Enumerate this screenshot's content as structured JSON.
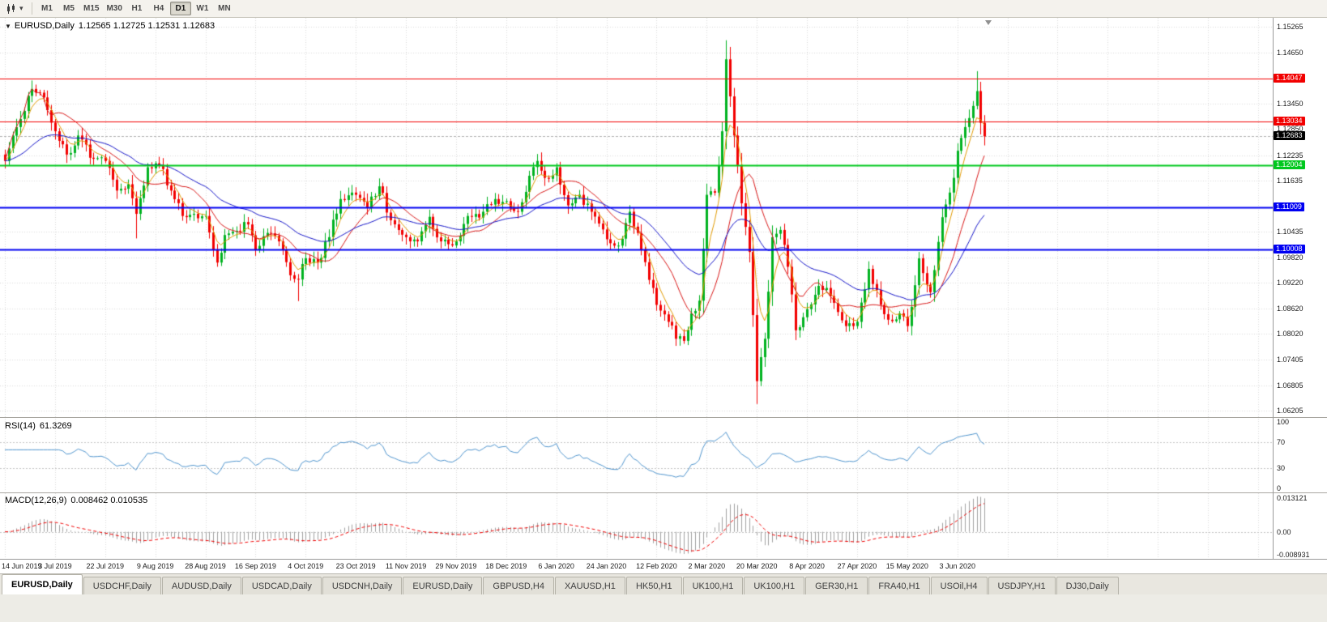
{
  "icons": {
    "chart_dropdown": "▼",
    "toolbar_caret": "▾"
  },
  "toolbar": {
    "timeframes": [
      {
        "label": "M1",
        "active": false
      },
      {
        "label": "M5",
        "active": false
      },
      {
        "label": "M15",
        "active": false
      },
      {
        "label": "M30",
        "active": false
      },
      {
        "label": "H1",
        "active": false
      },
      {
        "label": "H4",
        "active": false
      },
      {
        "label": "D1",
        "active": true
      },
      {
        "label": "W1",
        "active": false
      },
      {
        "label": "MN",
        "active": false
      }
    ]
  },
  "main_panel": {
    "symbol": "EURUSD,Daily",
    "ohlc": "1.12565 1.12725 1.12531 1.12683",
    "axis_ticks": [
      "1.15265",
      "1.14650",
      "1.13450",
      "1.12850",
      "1.12235",
      "1.11635",
      "1.10435",
      "1.09820",
      "1.09220",
      "1.08620",
      "1.08020",
      "1.07405",
      "1.06805",
      "1.06205"
    ],
    "price_lines": [
      {
        "label": "1.14047",
        "color": "#f20000",
        "width": 1
      },
      {
        "label": "1.13034",
        "color": "#f20000",
        "width": 1
      },
      {
        "label": "1.12004",
        "color": "#00c81e",
        "width": 2
      },
      {
        "label": "1.11009",
        "color": "#0000f2",
        "width": 2
      },
      {
        "label": "1.10008",
        "color": "#0000f2",
        "width": 2
      }
    ],
    "current_price": {
      "label": "1.12683",
      "color": "#000000"
    }
  },
  "rsi_panel": {
    "label": "RSI(14)",
    "value": "61.3269",
    "axis_ticks": [
      "100",
      "70",
      "30",
      "0"
    ],
    "levels": [
      70,
      30
    ]
  },
  "macd_panel": {
    "label": "MACD(12,26,9)",
    "value": "0.008462 0.010535",
    "axis_ticks": [
      "0.013121",
      "0.00",
      "-0.008931"
    ]
  },
  "tabs": [
    {
      "label": "EURUSD,Daily",
      "active": true
    },
    {
      "label": "USDCHF,Daily",
      "active": false
    },
    {
      "label": "AUDUSD,Daily",
      "active": false
    },
    {
      "label": "USDCAD,Daily",
      "active": false
    },
    {
      "label": "USDCNH,Daily",
      "active": false
    },
    {
      "label": "EURUSD,Daily",
      "active": false
    },
    {
      "label": "GBPUSD,H4",
      "active": false
    },
    {
      "label": "XAUUSD,H1",
      "active": false
    },
    {
      "label": "HK50,H1",
      "active": false
    },
    {
      "label": "UK100,H1",
      "active": false
    },
    {
      "label": "UK100,H1",
      "active": false
    },
    {
      "label": "GER30,H1",
      "active": false
    },
    {
      "label": "FRA40,H1",
      "active": false
    },
    {
      "label": "USOil,H4",
      "active": false
    },
    {
      "label": "USDJPY,H1",
      "active": false
    },
    {
      "label": "DJ30,Daily",
      "active": false
    }
  ],
  "chart_data": {
    "type": "candlestick",
    "symbol": "EURUSD",
    "timeframe": "Daily",
    "ohlc_display": {
      "open": 1.12565,
      "high": 1.12725,
      "low": 1.12531,
      "close": 1.12683
    },
    "num_candles": 255,
    "candles_per_date_tick": 13,
    "x_tick_labels": [
      "14 Jun 2019",
      "3 Jul 2019",
      "22 Jul 2019",
      "9 Aug 2019",
      "28 Aug 2019",
      "16 Sep 2019",
      "4 Oct 2019",
      "23 Oct 2019",
      "11 Nov 2019",
      "29 Nov 2019",
      "18 Dec 2019",
      "6 Jan 2020",
      "24 Jan 2020",
      "12 Feb 2020",
      "2 Mar 2020",
      "20 Mar 2020",
      "8 Apr 2020",
      "27 Apr 2020",
      "15 May 2020",
      "3 Jun 2020"
    ],
    "price_scale": {
      "top": 1.1548,
      "bottom": 1.0605
    },
    "horizontal_levels": [
      1.14047,
      1.13034,
      1.12004,
      1.11009,
      1.10008
    ],
    "close_anchors": [
      [
        0,
        1.121
      ],
      [
        3,
        1.129
      ],
      [
        7,
        1.138
      ],
      [
        10,
        1.136
      ],
      [
        13,
        1.128
      ],
      [
        16,
        1.1225
      ],
      [
        19,
        1.127
      ],
      [
        23,
        1.1215
      ],
      [
        26,
        1.121
      ],
      [
        29,
        1.114
      ],
      [
        32,
        1.1155
      ],
      [
        34,
        1.1085
      ],
      [
        37,
        1.1195
      ],
      [
        40,
        1.12
      ],
      [
        43,
        1.114
      ],
      [
        46,
        1.108
      ],
      [
        49,
        1.1085
      ],
      [
        52,
        1.108
      ],
      [
        55,
        1.097
      ],
      [
        57,
        1.1035
      ],
      [
        60,
        1.1045
      ],
      [
        63,
        1.106
      ],
      [
        65,
        1.1
      ],
      [
        68,
        1.104
      ],
      [
        71,
        1.102
      ],
      [
        74,
        1.094
      ],
      [
        76,
        1.093
      ],
      [
        78,
        1.098
      ],
      [
        81,
        1.097
      ],
      [
        84,
        1.103
      ],
      [
        87,
        1.112
      ],
      [
        91,
        1.113
      ],
      [
        94,
        1.11
      ],
      [
        97,
        1.115
      ],
      [
        100,
        1.107
      ],
      [
        104,
        1.103
      ],
      [
        107,
        1.102
      ],
      [
        110,
        1.1078
      ],
      [
        113,
        1.102
      ],
      [
        117,
        1.102
      ],
      [
        120,
        1.108
      ],
      [
        124,
        1.109
      ],
      [
        127,
        1.112
      ],
      [
        130,
        1.1115
      ],
      [
        133,
        1.109
      ],
      [
        136,
        1.1175
      ],
      [
        138,
        1.121
      ],
      [
        140,
        1.117
      ],
      [
        143,
        1.1195
      ],
      [
        146,
        1.1105
      ],
      [
        149,
        1.113
      ],
      [
        152,
        1.109
      ],
      [
        156,
        1.1025
      ],
      [
        159,
        1.101
      ],
      [
        162,
        1.109
      ],
      [
        165,
        1.1
      ],
      [
        168,
        1.091
      ],
      [
        169,
        1.087
      ],
      [
        172,
        1.083
      ],
      [
        174,
        1.079
      ],
      [
        176,
        1.0785
      ],
      [
        178,
        1.085
      ],
      [
        180,
        1.088
      ],
      [
        182,
        1.113
      ],
      [
        184,
        1.1135
      ],
      [
        186,
        1.128
      ],
      [
        187,
        1.145
      ],
      [
        189,
        1.127
      ],
      [
        191,
        1.111
      ],
      [
        193,
        1.0995
      ],
      [
        195,
        1.069
      ],
      [
        197,
        1.079
      ],
      [
        199,
        1.103
      ],
      [
        201,
        1.1047
      ],
      [
        203,
        1.096
      ],
      [
        205,
        1.081
      ],
      [
        208,
        1.086
      ],
      [
        211,
        1.0915
      ],
      [
        213,
        1.091
      ],
      [
        215,
        1.0875
      ],
      [
        218,
        1.082
      ],
      [
        220,
        1.082
      ],
      [
        221,
        1.083
      ],
      [
        224,
        1.0955
      ],
      [
        226,
        1.0905
      ],
      [
        229,
        1.0835
      ],
      [
        232,
        1.085
      ],
      [
        234,
        1.082
      ],
      [
        237,
        1.098
      ],
      [
        240,
        1.09
      ],
      [
        243,
        1.1077
      ],
      [
        246,
        1.117
      ],
      [
        247,
        1.1234
      ],
      [
        249,
        1.129
      ],
      [
        251,
        1.134
      ],
      [
        252,
        1.1375
      ],
      [
        253,
        1.13
      ],
      [
        254,
        1.1268
      ]
    ],
    "wick_overrides": [
      {
        "i": 7,
        "h": 1.14
      },
      {
        "i": 34,
        "l": 1.1027
      },
      {
        "i": 76,
        "l": 1.0879
      },
      {
        "i": 176,
        "l": 1.0778
      },
      {
        "i": 187,
        "h": 1.1495
      },
      {
        "i": 195,
        "l": 1.0636
      },
      {
        "i": 252,
        "h": 1.1422
      }
    ],
    "indicators": {
      "ma_fast": {
        "type": "ema",
        "period": 5
      },
      "ma_mid": {
        "type": "sma",
        "period": 13
      },
      "ma_slow": {
        "type": "ema",
        "period": 34
      },
      "rsi": {
        "period": 14,
        "last": 61.3269,
        "levels": [
          70,
          30
        ],
        "range": [
          0,
          100
        ]
      },
      "macd": {
        "fast": 12,
        "slow": 26,
        "signal": 9,
        "last_main": 0.008462,
        "last_signal": 0.010535,
        "axis_top": 0.013121,
        "axis_bottom": -0.008931
      }
    },
    "colors": {
      "up": "#00b220",
      "down": "#f20000",
      "ma_fast": "#e09a00",
      "ma_mid": "#d81818",
      "ma_slow": "#1616c8",
      "rsi": "#4f94cd",
      "macd_hist": "#a0a0a0",
      "macd_signal": "#f00000",
      "grid": "#d9d9d9",
      "current_price_line": "#b0b0b0"
    }
  }
}
